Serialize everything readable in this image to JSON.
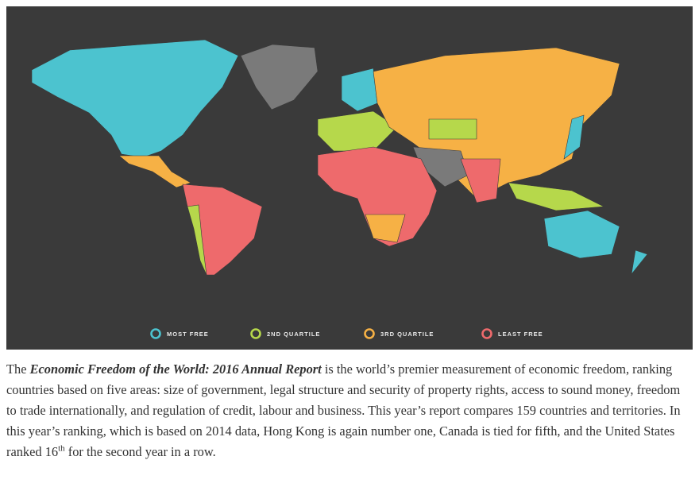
{
  "legend": [
    {
      "label": "MOST FREE",
      "color": "#4cc3cf"
    },
    {
      "label": "2ND QUARTILE",
      "color": "#b6d84b"
    },
    {
      "label": "3RD QUARTILE",
      "color": "#f6b145"
    },
    {
      "label": "LEAST FREE",
      "color": "#ee6a6c"
    }
  ],
  "paragraph": {
    "intro": "The ",
    "title": "Economic Freedom of the World: 2016 Annual Report",
    "body": " is the world’s premier measurement of economic freedom, ranking countries based on five areas: size of government, legal structure and security of property rights, access to sound money, freedom to trade internationally, and regulation of credit, labour and business. This year’s report compares 159 countries and territories. In this year’s ranking, which is based on 2014 data, Hong Kong is again number one, Canada is tied for fifth, and the United States ranked 16",
    "superscript": "th",
    "end": " for the second year in a row."
  }
}
